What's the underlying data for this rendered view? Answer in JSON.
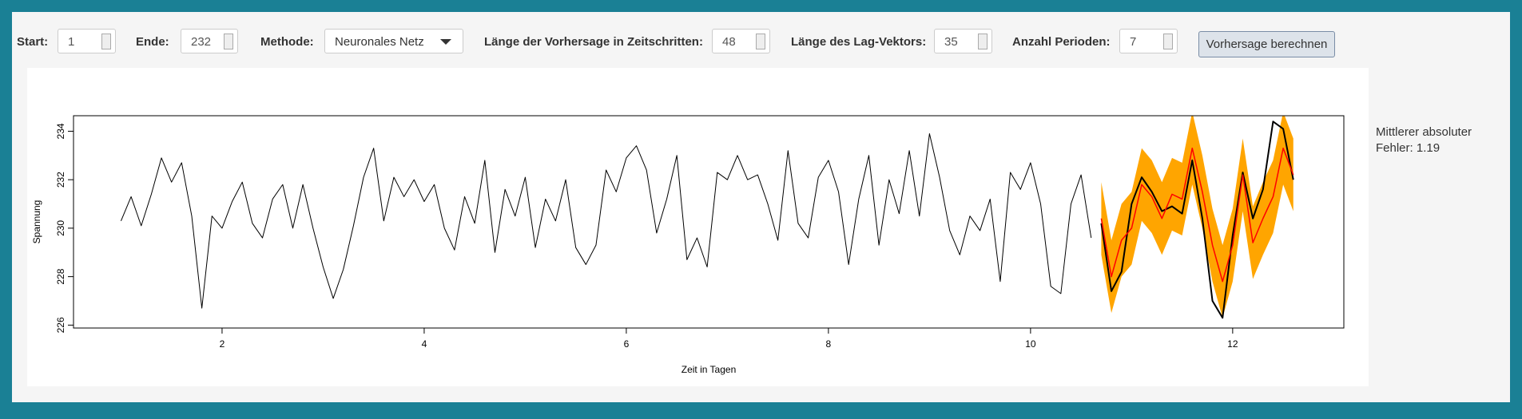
{
  "controls": {
    "start": {
      "label": "Start:",
      "value": "1"
    },
    "ende": {
      "label": "Ende:",
      "value": "232"
    },
    "methode": {
      "label": "Methode:",
      "value": "Neuronales Netz"
    },
    "vorhersage": {
      "label": "Länge der Vorhersage in Zeitschritten:",
      "value": "48"
    },
    "lag": {
      "label": "Länge des Lag-Vektors:",
      "value": "35"
    },
    "perioden": {
      "label": "Anzahl Perioden:",
      "value": "7"
    },
    "button": "Vorhersage berechnen"
  },
  "result": "Mittlerer absoluter Fehler: 1.19",
  "chart_data": {
    "type": "line",
    "xlabel": "Zeit in Tagen",
    "ylabel": "Spannung",
    "xlim": [
      0.53,
      13.1
    ],
    "ylim": [
      225.88,
      234.64
    ],
    "xticks": [
      2,
      4,
      6,
      8,
      10,
      12
    ],
    "yticks": [
      226,
      228,
      230,
      232,
      234
    ],
    "band": {
      "color": "#ffa500",
      "x": [
        10.7,
        10.8,
        10.9,
        11.0,
        11.1,
        11.2,
        11.3,
        11.4,
        11.5,
        11.6,
        11.7,
        11.8,
        11.9,
        12.0,
        12.1,
        12.2,
        12.3,
        12.4,
        12.5,
        12.6
      ],
      "lower": [
        228.9,
        226.5,
        228.0,
        228.5,
        230.3,
        229.8,
        228.9,
        229.9,
        229.7,
        231.8,
        230.0,
        227.8,
        226.3,
        227.8,
        230.7,
        227.9,
        228.9,
        229.8,
        231.8,
        230.7
      ],
      "upper": [
        231.9,
        229.5,
        231.0,
        231.5,
        233.3,
        232.8,
        231.9,
        232.9,
        232.7,
        234.8,
        233.0,
        230.8,
        229.3,
        230.8,
        233.7,
        230.9,
        231.9,
        232.8,
        234.8,
        233.7
      ]
    },
    "series": [
      {
        "color": "#000000",
        "width": 1,
        "x": [
          1.0,
          1.1,
          1.2,
          1.3,
          1.4,
          1.5,
          1.6,
          1.7,
          1.8,
          1.9,
          2.0,
          2.1,
          2.2,
          2.3,
          2.4,
          2.5,
          2.6,
          2.7,
          2.8,
          2.9,
          3.0,
          3.1,
          3.2,
          3.3,
          3.4,
          3.5,
          3.6,
          3.7,
          3.8,
          3.9,
          4.0,
          4.1,
          4.2,
          4.3,
          4.4,
          4.5,
          4.6,
          4.7,
          4.8,
          4.9,
          5.0,
          5.1,
          5.2,
          5.3,
          5.4,
          5.5,
          5.6,
          5.7,
          5.8,
          5.9,
          6.0,
          6.1,
          6.2,
          6.3,
          6.4,
          6.5,
          6.6,
          6.7,
          6.8,
          6.9,
          7.0,
          7.1,
          7.2,
          7.3,
          7.4,
          7.5,
          7.6,
          7.7,
          7.8,
          7.9,
          8.0,
          8.1,
          8.2,
          8.3,
          8.4,
          8.5,
          8.6,
          8.7,
          8.8,
          8.9,
          9.0,
          9.1,
          9.2,
          9.3,
          9.4,
          9.5,
          9.6,
          9.7,
          9.8,
          9.9,
          10.0,
          10.1,
          10.2,
          10.3,
          10.4,
          10.5,
          10.6
        ],
        "values": [
          230.3,
          231.3,
          230.1,
          231.4,
          232.9,
          231.9,
          232.7,
          230.5,
          226.7,
          230.5,
          230.0,
          231.1,
          231.9,
          230.2,
          229.6,
          231.2,
          231.8,
          230.0,
          231.8,
          230.0,
          228.4,
          227.1,
          228.3,
          230.1,
          232.1,
          233.3,
          230.3,
          232.1,
          231.3,
          232.0,
          231.1,
          231.8,
          230.0,
          229.1,
          231.3,
          230.2,
          232.8,
          229.0,
          231.6,
          230.5,
          232.1,
          229.2,
          231.2,
          230.3,
          232.0,
          229.2,
          228.5,
          229.3,
          232.4,
          231.5,
          232.9,
          233.4,
          232.4,
          229.8,
          231.2,
          233.0,
          228.7,
          229.6,
          228.4,
          232.3,
          232.0,
          233.0,
          232.0,
          232.2,
          231.0,
          229.5,
          233.2,
          230.2,
          229.6,
          232.1,
          232.8,
          231.5,
          228.5,
          231.2,
          233.0,
          229.3,
          232.0,
          230.6,
          233.2,
          230.5,
          233.9,
          232.1,
          229.9,
          228.9,
          230.5,
          229.9,
          231.2,
          227.8,
          232.3,
          231.6,
          232.7,
          231.0,
          227.6,
          227.3,
          231.0,
          232.2,
          229.6
        ]
      },
      {
        "color": "#000000",
        "width": 2,
        "x": [
          10.7,
          10.8,
          10.9,
          11.0,
          11.1,
          11.2,
          11.3,
          11.4,
          11.5,
          11.6,
          11.7,
          11.8,
          11.9,
          12.0,
          12.1,
          12.2,
          12.3,
          12.4,
          12.5,
          12.6
        ],
        "values": [
          230.2,
          227.4,
          228.2,
          231.0,
          232.1,
          231.5,
          230.7,
          230.9,
          230.6,
          232.8,
          230.4,
          227.0,
          226.3,
          229.7,
          232.3,
          230.4,
          231.6,
          234.4,
          234.1,
          232.0
        ]
      },
      {
        "color": "#ff0000",
        "width": 1.5,
        "x": [
          10.7,
          10.8,
          10.9,
          11.0,
          11.1,
          11.2,
          11.3,
          11.4,
          11.5,
          11.6,
          11.7,
          11.8,
          11.9,
          12.0,
          12.1,
          12.2,
          12.3,
          12.4,
          12.5,
          12.6
        ],
        "values": [
          230.4,
          228.0,
          229.5,
          230.0,
          231.8,
          231.3,
          230.4,
          231.4,
          231.2,
          233.3,
          231.5,
          229.3,
          227.8,
          229.3,
          232.2,
          229.4,
          230.4,
          231.3,
          233.3,
          232.2
        ]
      }
    ]
  }
}
